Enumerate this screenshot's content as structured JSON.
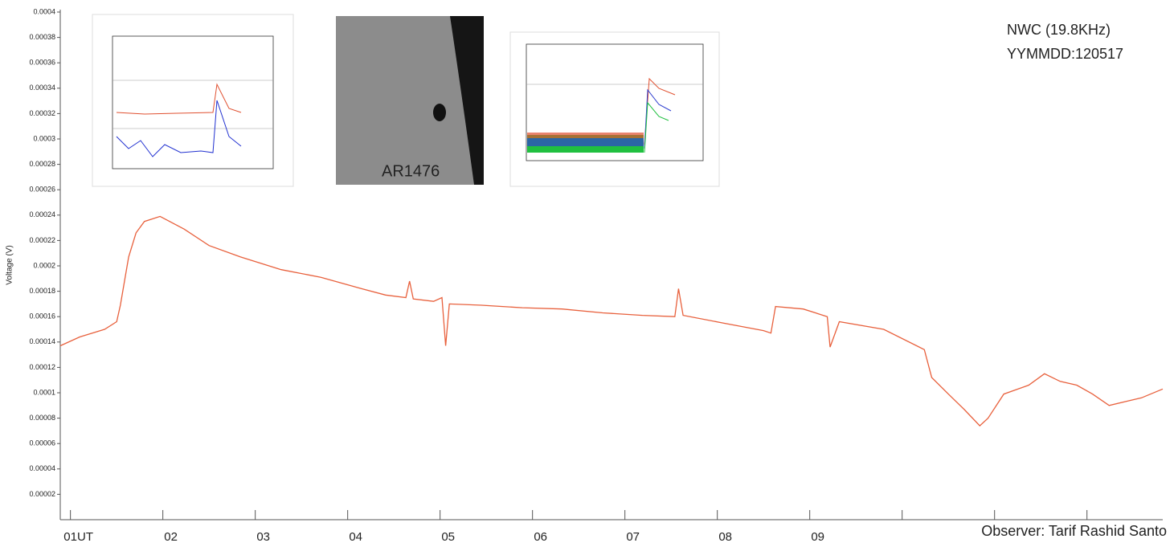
{
  "chart_data": {
    "type": "line",
    "ylabel": "Voltage (V)",
    "annotations": [
      "NWC (19.8KHz)",
      "YYMMDD:120517",
      "AR1476",
      "Observer: Tarif Rashid Santo"
    ],
    "ylim": [
      0,
      0.0004
    ],
    "yticks": [
      2e-05,
      4e-05,
      6e-05,
      8e-05,
      0.0001,
      0.00012,
      0.00014,
      0.00016,
      0.00018,
      0.0002,
      0.00022,
      0.00024,
      0.00026,
      0.00028,
      0.0003,
      0.00032,
      0.00034,
      0.00036,
      0.00038,
      0.0004
    ],
    "xlim": [
      0.89,
      12.82
    ],
    "xticks": [
      {
        "value": 1,
        "label": "01UT"
      },
      {
        "value": 2,
        "label": "02"
      },
      {
        "value": 3,
        "label": "03"
      },
      {
        "value": 4,
        "label": "04"
      },
      {
        "value": 5,
        "label": "05"
      },
      {
        "value": 6,
        "label": "06"
      },
      {
        "value": 7,
        "label": "07"
      },
      {
        "value": 8,
        "label": "08"
      },
      {
        "value": 9,
        "label": "09"
      },
      {
        "value": 10,
        "label": null
      },
      {
        "value": 11,
        "label": null
      },
      {
        "value": 12,
        "label": null
      }
    ],
    "series": [
      {
        "color": "#e8603c",
        "x": [
          0.89,
          1.1,
          1.37,
          1.5,
          1.54,
          1.63,
          1.71,
          1.8,
          1.97,
          2.23,
          2.5,
          2.84,
          3.28,
          3.71,
          4.15,
          4.41,
          4.63,
          4.67,
          4.71,
          4.93,
          5.02,
          5.06,
          5.1,
          5.45,
          5.89,
          6.32,
          6.76,
          7.19,
          7.54,
          7.58,
          7.63,
          8.06,
          8.5,
          8.58,
          8.63,
          8.93,
          9.19,
          9.22,
          9.32,
          9.8,
          10.24,
          10.32,
          10.5,
          10.67,
          10.84,
          10.93,
          11.1,
          11.37,
          11.54,
          11.71,
          11.89,
          12.06,
          12.24,
          12.41,
          12.59,
          12.82
        ],
        "values": [
          0.000137,
          0.000144,
          0.00015,
          0.000156,
          0.000169,
          0.000207,
          0.000226,
          0.000235,
          0.000239,
          0.000229,
          0.000216,
          0.000207,
          0.000197,
          0.000191,
          0.000182,
          0.000177,
          0.000175,
          0.000188,
          0.000174,
          0.000172,
          0.000175,
          0.000137,
          0.00017,
          0.000169,
          0.000167,
          0.000166,
          0.000163,
          0.000161,
          0.00016,
          0.000182,
          0.000161,
          0.000155,
          0.000149,
          0.000147,
          0.000168,
          0.000166,
          0.00016,
          0.000136,
          0.000156,
          0.00015,
          0.000134,
          0.000112,
          9.9e-05,
          8.7e-05,
          7.4e-05,
          8e-05,
          9.9e-05,
          0.000106,
          0.000115,
          0.000109,
          0.000106,
          9.9e-05,
          9e-05,
          9.3e-05,
          9.6e-05,
          0.000103
        ]
      }
    ]
  }
}
